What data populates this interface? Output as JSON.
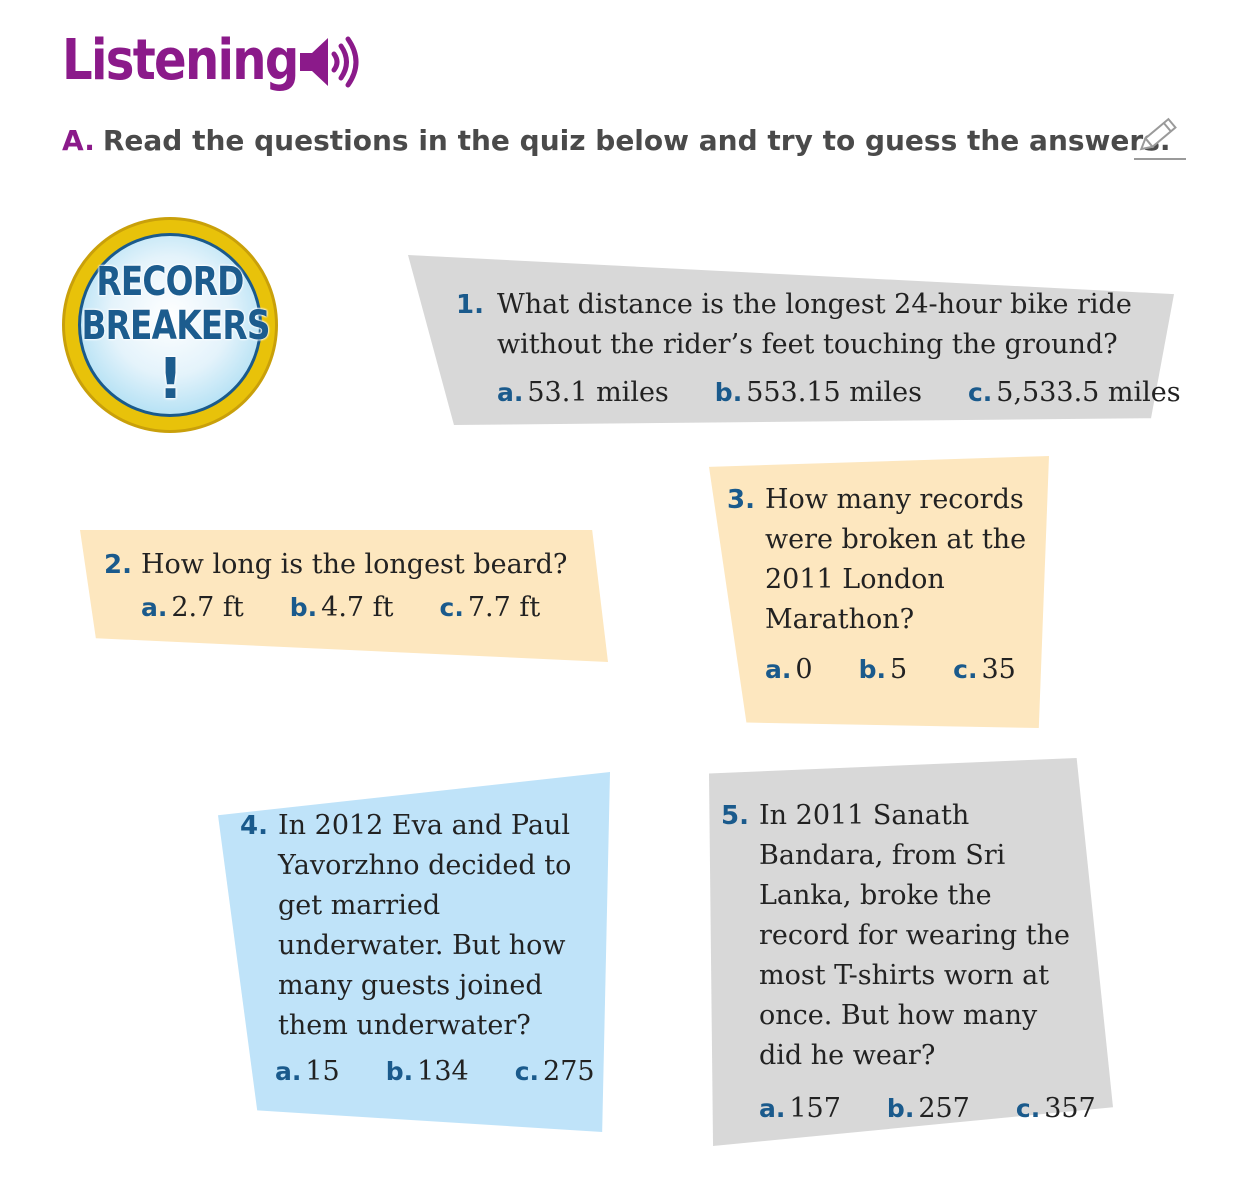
{
  "header": {
    "title": "Listening",
    "section_letter": "A.",
    "instruction": "Read the questions in the quiz below and try to guess the answers."
  },
  "icons": {
    "audio": "speaker-icon",
    "write": "pencil-icon"
  },
  "badge": {
    "line1": "RECORD",
    "line2": "BREAKERS",
    "line3": "!"
  },
  "colors": {
    "title_purple": "#8b1a8a",
    "number_blue": "#1a5a8c",
    "card_grey": "#d8d8d8",
    "card_peach": "#fde7bf",
    "card_blue": "#bfe3f9",
    "badge_gold": "#e8c20a"
  },
  "questions": [
    {
      "number": "1.",
      "text": "What distance is the longest 24-hour bike ride without the rider’s feet touching the ground?",
      "options": [
        {
          "letter": "a.",
          "value": "53.1 miles"
        },
        {
          "letter": "b.",
          "value": "553.15 miles"
        },
        {
          "letter": "c.",
          "value": "5,533.5 miles"
        }
      ]
    },
    {
      "number": "2.",
      "text": "How long is the longest beard?",
      "options": [
        {
          "letter": "a.",
          "value": "2.7 ft"
        },
        {
          "letter": "b.",
          "value": "4.7 ft"
        },
        {
          "letter": "c.",
          "value": "7.7 ft"
        }
      ]
    },
    {
      "number": "3.",
      "text": "How many records were broken at the 2011 London Marathon?",
      "options": [
        {
          "letter": "a.",
          "value": "0"
        },
        {
          "letter": "b.",
          "value": "5"
        },
        {
          "letter": "c.",
          "value": "35"
        }
      ]
    },
    {
      "number": "4.",
      "text": "In 2012 Eva and Paul Yavorzhno decided to get married underwater. But how many guests joined them underwater?",
      "options": [
        {
          "letter": "a.",
          "value": "15"
        },
        {
          "letter": "b.",
          "value": "134"
        },
        {
          "letter": "c.",
          "value": "275"
        }
      ]
    },
    {
      "number": "5.",
      "text": "In 2011 Sanath Bandara, from Sri Lanka, broke the record for wearing the most T-shirts worn at once. But how many did he wear?",
      "options": [
        {
          "letter": "a.",
          "value": "157"
        },
        {
          "letter": "b.",
          "value": "257"
        },
        {
          "letter": "c.",
          "value": "357"
        }
      ]
    }
  ]
}
